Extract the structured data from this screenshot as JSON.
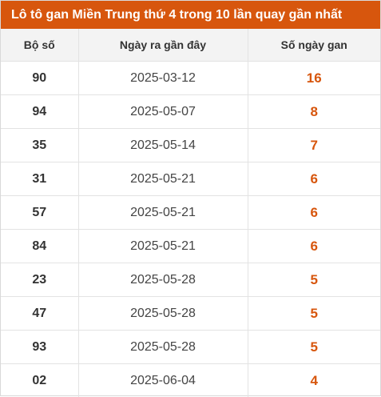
{
  "title": "Lô tô gan Miền Trung thứ 4 trong 10 lần quay gần nhất",
  "columns": [
    "Bộ số",
    "Ngày ra gần đây",
    "Số ngày gan"
  ],
  "rows": [
    {
      "number": "90",
      "date": "2025-03-12",
      "days": "16"
    },
    {
      "number": "94",
      "date": "2025-05-07",
      "days": "8"
    },
    {
      "number": "35",
      "date": "2025-05-14",
      "days": "7"
    },
    {
      "number": "31",
      "date": "2025-05-21",
      "days": "6"
    },
    {
      "number": "57",
      "date": "2025-05-21",
      "days": "6"
    },
    {
      "number": "84",
      "date": "2025-05-21",
      "days": "6"
    },
    {
      "number": "23",
      "date": "2025-05-28",
      "days": "5"
    },
    {
      "number": "47",
      "date": "2025-05-28",
      "days": "5"
    },
    {
      "number": "93",
      "date": "2025-05-28",
      "days": "5"
    },
    {
      "number": "02",
      "date": "2025-06-04",
      "days": "4"
    }
  ],
  "colors": {
    "accent": "#d7560d",
    "header_bg": "#f3f3f3",
    "border": "#e3e3e3"
  }
}
